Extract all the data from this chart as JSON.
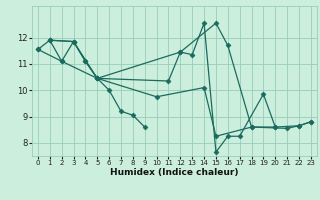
{
  "xlabel": "Humidex (Indice chaleur)",
  "bg_color": "#cceedd",
  "grid_color": "#99ccbb",
  "line_color": "#1a6b5e",
  "series": [
    [
      [
        0,
        11.55
      ],
      [
        1,
        11.9
      ],
      [
        2,
        11.1
      ],
      [
        3,
        11.85
      ],
      [
        4,
        11.1
      ],
      [
        5,
        10.45
      ],
      [
        6,
        10.0
      ],
      [
        7,
        9.2
      ],
      [
        8,
        9.05
      ],
      [
        9,
        8.6
      ]
    ],
    [
      [
        0,
        11.55
      ],
      [
        2,
        11.1
      ],
      [
        5,
        10.45
      ],
      [
        10,
        9.75
      ],
      [
        14,
        10.1
      ],
      [
        15,
        8.25
      ],
      [
        18,
        8.6
      ],
      [
        21,
        8.55
      ],
      [
        22,
        8.65
      ],
      [
        23,
        8.8
      ]
    ],
    [
      [
        1,
        11.9
      ],
      [
        3,
        11.85
      ],
      [
        4,
        11.1
      ],
      [
        5,
        10.45
      ],
      [
        11,
        10.35
      ],
      [
        12,
        11.45
      ],
      [
        13,
        11.35
      ],
      [
        14,
        12.55
      ],
      [
        15,
        7.65
      ],
      [
        16,
        8.25
      ],
      [
        17,
        8.25
      ],
      [
        19,
        9.85
      ],
      [
        20,
        8.6
      ]
    ],
    [
      [
        1,
        11.9
      ],
      [
        3,
        11.85
      ],
      [
        5,
        10.45
      ],
      [
        12,
        11.45
      ],
      [
        15,
        12.55
      ],
      [
        16,
        11.7
      ],
      [
        18,
        8.6
      ],
      [
        20,
        8.6
      ],
      [
        22,
        8.65
      ],
      [
        23,
        8.8
      ]
    ]
  ],
  "xlim": [
    -0.5,
    23.5
  ],
  "ylim": [
    7.5,
    13.2
  ],
  "yticks": [
    8,
    9,
    10,
    11,
    12
  ],
  "xticks": [
    0,
    1,
    2,
    3,
    4,
    5,
    6,
    7,
    8,
    9,
    10,
    11,
    12,
    13,
    14,
    15,
    16,
    17,
    18,
    19,
    20,
    21,
    22,
    23
  ],
  "marker": "D",
  "markersize": 2.5,
  "linewidth": 0.9
}
